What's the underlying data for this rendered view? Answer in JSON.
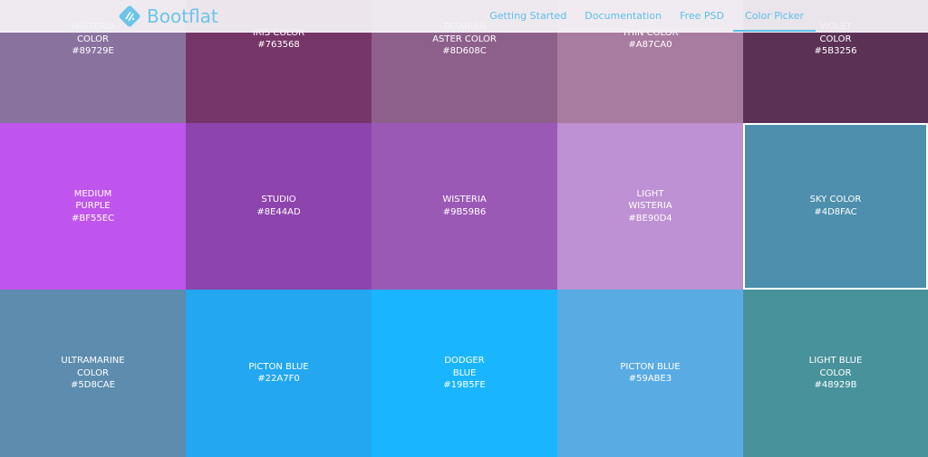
{
  "header": {
    "brand": "Bootflat",
    "nav": [
      {
        "label": "Getting Started"
      },
      {
        "label": "Documentation"
      },
      {
        "label": "Free PSD"
      },
      {
        "label": "Color Picker",
        "active": true
      }
    ],
    "accent": "#5BBFE8"
  },
  "colors": [
    {
      "name": "Wisteria\nColor",
      "hex": "#89729E"
    },
    {
      "name": "Iris Color",
      "hex": "#763568"
    },
    {
      "name": "Tatarian\nAster Color",
      "hex": "#8D608C"
    },
    {
      "name": "Thin Color",
      "hex": "#A87CA0"
    },
    {
      "name": "Violet\nColor",
      "hex": "#5B3256"
    },
    {
      "name": "Medium\nPurple",
      "hex": "#BF55EC"
    },
    {
      "name": "Studio",
      "hex": "#8E44AD"
    },
    {
      "name": "Wisteria",
      "hex": "#9B59B6"
    },
    {
      "name": "Light\nWisteria",
      "hex": "#BE90D4"
    },
    {
      "name": "Sky Color",
      "hex": "#4D8FAC",
      "selected": true
    },
    {
      "name": "Ultramarine\nColor",
      "hex": "#5D8CAE"
    },
    {
      "name": "Picton Blue",
      "hex": "#22A7F0"
    },
    {
      "name": "Dodger\nBlue",
      "hex": "#19B5FE"
    },
    {
      "name": "Picton Blue",
      "hex": "#59ABE3"
    },
    {
      "name": "Light Blue\nColor",
      "hex": "#48929B"
    }
  ]
}
